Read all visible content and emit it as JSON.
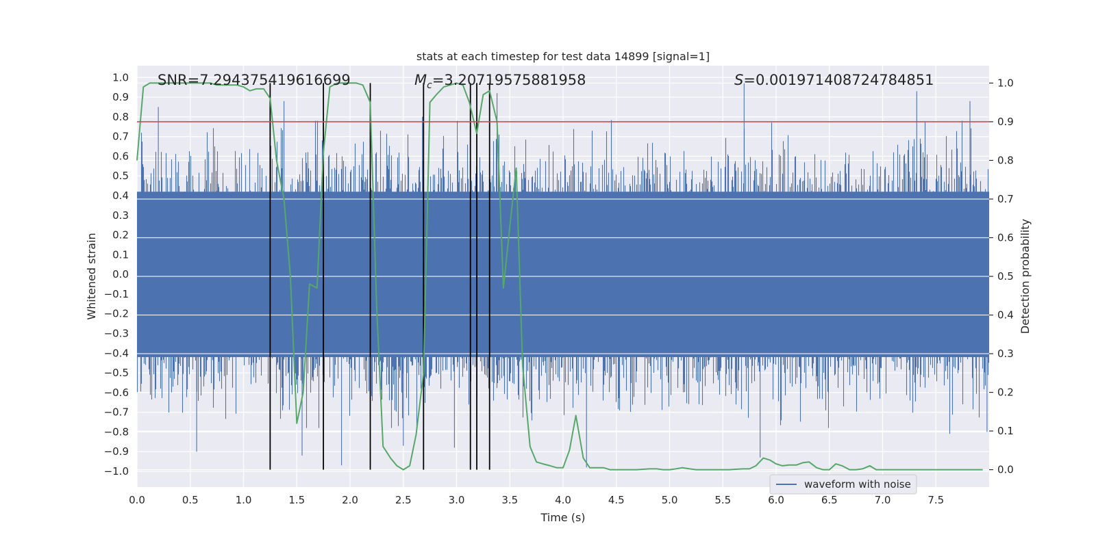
{
  "chart_data": {
    "type": "line",
    "title": "stats at each timestep for test data 14899 [signal=1]",
    "xlabel": "Time (s)",
    "ylabel_left": "Whitened strain",
    "ylabel_right": "Detection probability",
    "xlim": [
      0.0,
      8.0
    ],
    "ylim_left": [
      -1.08,
      1.06
    ],
    "ylim_right": [
      -0.045,
      1.045
    ],
    "xticks": [
      0.0,
      0.5,
      1.0,
      1.5,
      2.0,
      2.5,
      3.0,
      3.5,
      4.0,
      4.5,
      5.0,
      5.5,
      6.0,
      6.5,
      7.0,
      7.5
    ],
    "xtick_labels": [
      "0.0",
      "0.5",
      "1.0",
      "1.5",
      "2.0",
      "2.5",
      "3.0",
      "3.5",
      "4.0",
      "4.5",
      "5.0",
      "5.5",
      "6.0",
      "6.5",
      "7.0",
      "7.5"
    ],
    "yticks_left": [
      1.0,
      0.9,
      0.8,
      0.7,
      0.6,
      0.5,
      0.4,
      0.3,
      0.2,
      0.1,
      0.0,
      -0.1,
      -0.2,
      -0.3,
      -0.4,
      -0.5,
      -0.6,
      -0.7,
      -0.8,
      -0.9,
      -1.0
    ],
    "ytick_labels_left": [
      "1.0",
      "0.9",
      "0.8",
      "0.7",
      "0.6",
      "0.5",
      "0.4",
      "0.3",
      "0.2",
      "0.1",
      "0.0",
      "−0.1",
      "−0.2",
      "−0.3",
      "−0.4",
      "−0.5",
      "−0.6",
      "−0.7",
      "−0.8",
      "−0.9",
      "−1.0"
    ],
    "yticks_right": [
      1.0,
      0.9,
      0.8,
      0.7,
      0.6,
      0.5,
      0.4,
      0.3,
      0.2,
      0.1,
      0.0
    ],
    "ytick_labels_right": [
      "1.0",
      "0.9",
      "0.8",
      "0.7",
      "0.6",
      "0.5",
      "0.4",
      "0.3",
      "0.2",
      "0.1",
      "0.0"
    ],
    "grid": true,
    "annotations": {
      "snr": "SNR=7.294375419616699",
      "mc": "M_c=3.20719575881958",
      "mc_base": "M",
      "mc_sub": "c",
      "mc_value": "=3.20719575881958",
      "s": "S=0.001971408724784851",
      "s_symbol": "S",
      "s_value": "=0.001971408724784851"
    },
    "threshold": {
      "value": 0.9,
      "axis": "right",
      "color": "#c44e52"
    },
    "vertical_markers": [
      1.25,
      1.75,
      2.19,
      2.69,
      3.13,
      3.19,
      3.31
    ],
    "waveform_envelope": {
      "description": "dense whitened strain noise, rendered as vertical spikes",
      "color": "#4c72b0",
      "core_range": [
        -0.42,
        0.42
      ],
      "notable_peaks": [
        [
          0.2,
          0.85
        ],
        [
          1.25,
          0.76
        ],
        [
          1.38,
          0.88
        ],
        [
          2.68,
          0.8
        ],
        [
          3.38,
          0.92
        ],
        [
          5.7,
          0.97
        ],
        [
          7.32,
          0.93
        ],
        [
          7.82,
          0.88
        ],
        [
          0.56,
          -0.9
        ],
        [
          1.55,
          -0.92
        ],
        [
          1.92,
          -0.97
        ],
        [
          2.5,
          -0.87
        ],
        [
          2.98,
          -0.88
        ],
        [
          4.22,
          -0.98
        ],
        [
          5.85,
          -0.93
        ],
        [
          7.63,
          -0.81
        ],
        [
          7.98,
          -0.8
        ]
      ]
    },
    "series": [
      {
        "name": "waveform with noise",
        "axis": "left",
        "color": "#4c72b0"
      },
      {
        "axis": "right",
        "color": "#55a868",
        "x": [
          0.0,
          0.06,
          0.12,
          0.19,
          0.25,
          0.31,
          0.38,
          0.44,
          0.5,
          0.56,
          0.62,
          0.69,
          0.75,
          0.81,
          0.88,
          0.94,
          1.0,
          1.06,
          1.12,
          1.19,
          1.25,
          1.31,
          1.38,
          1.44,
          1.5,
          1.56,
          1.62,
          1.69,
          1.75,
          1.81,
          1.88,
          1.94,
          2.0,
          2.06,
          2.12,
          2.19,
          2.25,
          2.31,
          2.38,
          2.44,
          2.5,
          2.56,
          2.62,
          2.69,
          2.75,
          2.81,
          2.88,
          2.94,
          3.0,
          3.06,
          3.12,
          3.19,
          3.25,
          3.31,
          3.38,
          3.44,
          3.5,
          3.56,
          3.62,
          3.69,
          3.75,
          3.81,
          3.88,
          3.94,
          4.0,
          4.06,
          4.12,
          4.19,
          4.25,
          4.31,
          4.38,
          4.44,
          4.5,
          4.56,
          4.62,
          4.69,
          4.75,
          4.81,
          4.88,
          4.94,
          5.0,
          5.06,
          5.12,
          5.19,
          5.25,
          5.31,
          5.38,
          5.44,
          5.5,
          5.56,
          5.62,
          5.69,
          5.75,
          5.81,
          5.88,
          5.94,
          6.0,
          6.06,
          6.12,
          6.19,
          6.25,
          6.31,
          6.38,
          6.44,
          6.5,
          6.56,
          6.62,
          6.69,
          6.75,
          6.81,
          6.88,
          6.94,
          7.0,
          7.06,
          7.12,
          7.19,
          7.25,
          7.31,
          7.38,
          7.44,
          7.5,
          7.56,
          7.62,
          7.69,
          7.75,
          7.81,
          7.88,
          7.94
        ],
        "values": [
          0.8,
          0.99,
          1.0,
          1.0,
          1.0,
          1.0,
          1.0,
          1.0,
          1.0,
          1.0,
          1.0,
          1.0,
          0.995,
          0.995,
          0.995,
          0.995,
          0.99,
          0.98,
          0.985,
          0.985,
          0.96,
          0.8,
          0.7,
          0.5,
          0.12,
          0.2,
          0.48,
          0.47,
          0.82,
          0.99,
          1.0,
          1.0,
          1.0,
          1.0,
          0.995,
          0.95,
          0.42,
          0.06,
          0.03,
          0.01,
          0.0,
          0.01,
          0.09,
          0.25,
          0.95,
          0.97,
          0.99,
          0.995,
          1.0,
          0.995,
          0.95,
          0.87,
          0.97,
          0.98,
          0.9,
          0.47,
          0.63,
          0.78,
          0.27,
          0.06,
          0.02,
          0.015,
          0.01,
          0.005,
          0.005,
          0.05,
          0.14,
          0.03,
          0.005,
          0.005,
          0.005,
          0.0,
          0.0,
          0.0,
          0.0,
          0.0,
          0.001,
          0.002,
          0.002,
          0.0,
          0.0,
          0.002,
          0.005,
          0.002,
          0.0,
          0.0,
          0.0,
          0.0,
          0.0,
          0.0,
          0.001,
          0.002,
          0.002,
          0.01,
          0.03,
          0.025,
          0.015,
          0.01,
          0.012,
          0.012,
          0.018,
          0.02,
          0.005,
          0.0,
          0.0,
          0.015,
          0.01,
          0.0,
          0.0,
          0.002,
          0.01,
          0.0,
          0.0,
          0.0,
          0.0,
          0.0,
          0.0,
          0.0,
          0.0,
          0.0,
          0.0,
          0.0,
          0.0,
          0.0,
          0.0,
          0.0,
          0.0,
          0.0
        ]
      }
    ],
    "legend": {
      "location": "lower right",
      "entries": [
        "waveform with noise"
      ]
    },
    "colors": {
      "plot_background": "#eaeaf2",
      "grid": "#ffffff",
      "waveform": "#4c72b0",
      "probability": "#55a868",
      "threshold": "#c44e52",
      "markers": "#000000",
      "text": "#262626"
    }
  }
}
